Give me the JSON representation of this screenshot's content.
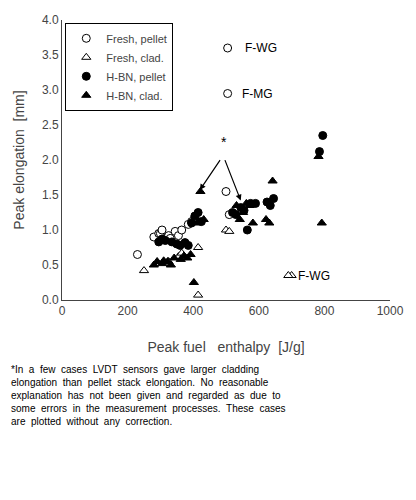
{
  "chart_data": {
    "type": "scatter",
    "xlabel": "Peak fuel   enthalpy  [J/g]",
    "ylabel": "Peak elongation  [mm]",
    "xlim": [
      0,
      1000
    ],
    "ylim": [
      0.0,
      4.0
    ],
    "xticks": [
      0,
      200,
      400,
      600,
      800,
      1000
    ],
    "yticks": [
      {
        "value": 0.0,
        "label": "0.0"
      },
      0.5,
      {
        "value": 1.0,
        "label": "1.0"
      },
      1.5,
      {
        "value": 2.0,
        "label": "2.0"
      },
      2.5,
      {
        "value": 3.0,
        "label": "3.0"
      },
      3.5,
      {
        "value": 4.0,
        "label": "4.0"
      }
    ],
    "grid": false,
    "legend": "upper left",
    "series": [
      {
        "name": "Fresh, pellet",
        "marker": "circle",
        "color": "white",
        "x": [
          230,
          280,
          295,
          300,
          305,
          315,
          325,
          330,
          345,
          355,
          365,
          385,
          395,
          405,
          500,
          510
        ],
        "y": [
          0.65,
          0.9,
          0.95,
          0.95,
          1.0,
          0.88,
          0.92,
          0.88,
          0.98,
          0.92,
          1.0,
          1.08,
          1.12,
          1.18,
          1.55,
          1.22
        ]
      },
      {
        "name": "Fresh, clad.",
        "marker": "triangle",
        "color": "white",
        "x": [
          250,
          315,
          325,
          355,
          365,
          415,
          415,
          500,
          510,
          700
        ],
        "y": [
          0.42,
          0.53,
          0.55,
          0.62,
          0.67,
          0.07,
          0.75,
          1.0,
          0.98,
          0.35
        ]
      },
      {
        "name": "H-BN, pellet",
        "marker": "circle",
        "color": "black",
        "x": [
          295,
          305,
          315,
          335,
          350,
          360,
          375,
          385,
          395,
          405,
          415,
          425,
          520,
          530,
          545,
          555,
          565,
          575,
          590,
          625,
          635,
          645,
          785,
          795
        ],
        "y": [
          0.83,
          0.87,
          0.85,
          0.83,
          0.8,
          0.78,
          0.82,
          0.78,
          1.1,
          1.2,
          1.25,
          1.12,
          1.25,
          1.22,
          1.32,
          1.28,
          1.0,
          1.38,
          1.38,
          1.4,
          1.35,
          1.45,
          2.12,
          2.35
        ]
      },
      {
        "name": "H-BN, clad.",
        "marker": "triangle",
        "color": "black",
        "x": [
          280,
          290,
          305,
          310,
          322,
          332,
          342,
          362,
          372,
          382,
          392,
          402,
          412,
          422,
          432,
          532,
          542,
          552,
          562,
          572,
          582,
          622,
          632,
          642,
          782,
          792
        ],
        "y": [
          0.5,
          0.55,
          0.52,
          0.56,
          0.55,
          0.5,
          0.6,
          0.58,
          0.63,
          0.6,
          0.65,
          0.25,
          1.1,
          1.55,
          1.15,
          1.35,
          1.15,
          1.25,
          1.38,
          1.35,
          1.1,
          1.15,
          1.1,
          1.7,
          2.05,
          1.1
        ]
      },
      {
        "marker": "circle",
        "color": "white",
        "x": [
          505
        ],
        "y": [
          3.6
        ]
      },
      {
        "marker": "circle",
        "color": "white",
        "x": [
          505
        ],
        "y": [
          2.95
        ]
      },
      {
        "marker": "triangle",
        "color": "white",
        "x": [
          690
        ],
        "y": [
          0.35
        ]
      }
    ],
    "annotations": [
      {
        "text": "F-WG",
        "x": 552,
        "y": 3.6
      },
      {
        "text": "F-MG",
        "x": 542,
        "y": 2.95
      },
      {
        "text": "F-WG",
        "x": 712,
        "y": 0.35
      },
      {
        "text": "*",
        "x": 495,
        "y": 2.12
      }
    ],
    "arrows": [
      {
        "from": [
          485,
          2.02
        ],
        "to": [
          420,
          1.57
        ]
      },
      {
        "from": [
          495,
          2.02
        ],
        "to": [
          545,
          1.42
        ]
      }
    ],
    "footnote": [
      "*In  a  few  cases  LVDT  sensors  gave  larger  cladding",
      "elongation  than  pellet  stack  elongation.  No  reasonable",
      "explanation  has  not  been  given  and  regarded  as  due  to",
      "some  errors  in  the  measurement  processes.  These  cases",
      "are  plotted  without  any  correction."
    ]
  }
}
